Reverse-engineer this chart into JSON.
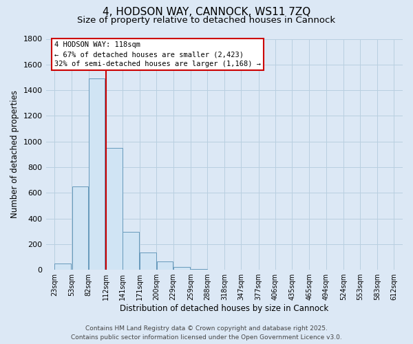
{
  "title": "4, HODSON WAY, CANNOCK, WS11 7ZQ",
  "subtitle": "Size of property relative to detached houses in Cannock",
  "xlabel": "Distribution of detached houses by size in Cannock",
  "ylabel": "Number of detached properties",
  "bar_color": "#d0e4f4",
  "bar_edge_color": "#6699bb",
  "vline_x": 112,
  "vline_color": "#cc0000",
  "annotation_title": "4 HODSON WAY: 118sqm",
  "annotation_line1": "← 67% of detached houses are smaller (2,423)",
  "annotation_line2": "32% of semi-detached houses are larger (1,168) →",
  "annotation_box_color": "#ffffff",
  "annotation_box_edge_color": "#cc0000",
  "bins_left": [
    23,
    53,
    82,
    112,
    141,
    171,
    200,
    229,
    259,
    288,
    318,
    347,
    377,
    406,
    435,
    465,
    494,
    524,
    553,
    583
  ],
  "bin_width": 29,
  "heights": [
    47,
    650,
    1490,
    950,
    298,
    135,
    65,
    20,
    8,
    3,
    2,
    0,
    0,
    0,
    0,
    0,
    0,
    0,
    0,
    0
  ],
  "xlim_left": 8,
  "xlim_right": 627,
  "ylim_top": 1800,
  "yticks": [
    0,
    200,
    400,
    600,
    800,
    1000,
    1200,
    1400,
    1600,
    1800
  ],
  "tick_labels": [
    "23sqm",
    "53sqm",
    "82sqm",
    "112sqm",
    "141sqm",
    "171sqm",
    "200sqm",
    "229sqm",
    "259sqm",
    "288sqm",
    "318sqm",
    "347sqm",
    "377sqm",
    "406sqm",
    "435sqm",
    "465sqm",
    "494sqm",
    "524sqm",
    "553sqm",
    "583sqm",
    "612sqm"
  ],
  "tick_positions": [
    23,
    53,
    82,
    112,
    141,
    171,
    200,
    229,
    259,
    288,
    318,
    347,
    377,
    406,
    435,
    465,
    494,
    524,
    553,
    583,
    612
  ],
  "footer_line1": "Contains HM Land Registry data © Crown copyright and database right 2025.",
  "footer_line2": "Contains public sector information licensed under the Open Government Licence v3.0.",
  "background_color": "#dce8f5",
  "plot_bg_color": "#dce8f5",
  "grid_color": "#b8cfe0",
  "title_fontsize": 11,
  "subtitle_fontsize": 9.5,
  "axis_label_fontsize": 8.5,
  "tick_fontsize": 7,
  "annotation_fontsize": 7.5,
  "footer_fontsize": 6.5
}
